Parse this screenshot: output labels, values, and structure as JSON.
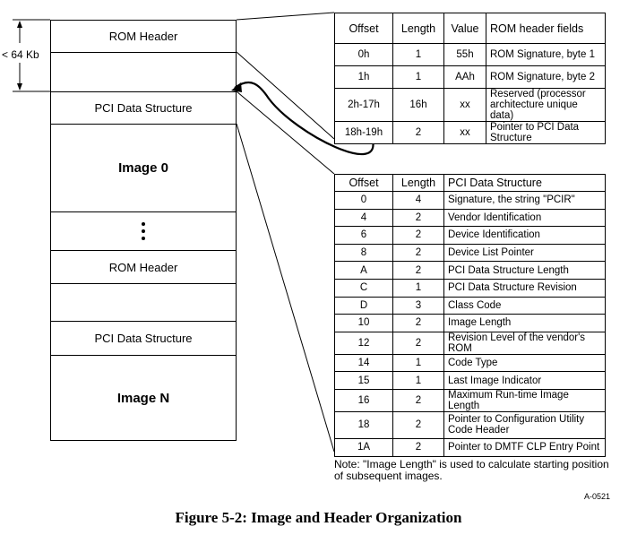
{
  "size_label": "< 64 Kb",
  "stack": {
    "rom_header_1": "ROM Header",
    "pci_ds_1": "PCI Data Structure",
    "image_0": "Image 0",
    "rom_header_2": "ROM Header",
    "pci_ds_2": "PCI Data Structure",
    "image_n": "Image N"
  },
  "rom_table": {
    "headers": [
      "Offset",
      "Length",
      "Value",
      "ROM header fields"
    ],
    "rows": [
      [
        "0h",
        "1",
        "55h",
        "ROM Signature, byte 1"
      ],
      [
        "1h",
        "1",
        "AAh",
        "ROM Signature, byte 2"
      ],
      [
        "2h-17h",
        "16h",
        "xx",
        "Reserved (processor architecture unique data)"
      ],
      [
        "18h-19h",
        "2",
        "xx",
        "Pointer to PCI Data Structure"
      ]
    ]
  },
  "pci_table": {
    "headers": [
      "Offset",
      "Length",
      "PCI Data Structure"
    ],
    "rows": [
      [
        "0",
        "4",
        "Signature, the string \"PCIR\""
      ],
      [
        "4",
        "2",
        "Vendor Identification"
      ],
      [
        "6",
        "2",
        "Device Identification"
      ],
      [
        "8",
        "2",
        "Device List Pointer"
      ],
      [
        "A",
        "2",
        "PCI Data Structure Length"
      ],
      [
        "C",
        "1",
        "PCI Data Structure Revision"
      ],
      [
        "D",
        "3",
        "Class Code"
      ],
      [
        "10",
        "2",
        "Image Length"
      ],
      [
        "12",
        "2",
        "Revision Level of the vendor's ROM"
      ],
      [
        "14",
        "1",
        "Code Type"
      ],
      [
        "15",
        "1",
        "Last Image Indicator"
      ],
      [
        "16",
        "2",
        "Maximum Run-time Image Length"
      ],
      [
        "18",
        "2",
        "Pointer to Configuration Utility Code Header"
      ],
      [
        "1A",
        "2",
        "Pointer to DMTF CLP Entry Point"
      ]
    ]
  },
  "note": "Note:  \"Image Length\" is used to calculate starting position of subsequent images.",
  "figure_id": "A-0521",
  "caption": "Figure 5-2:  Image and Header Organization"
}
